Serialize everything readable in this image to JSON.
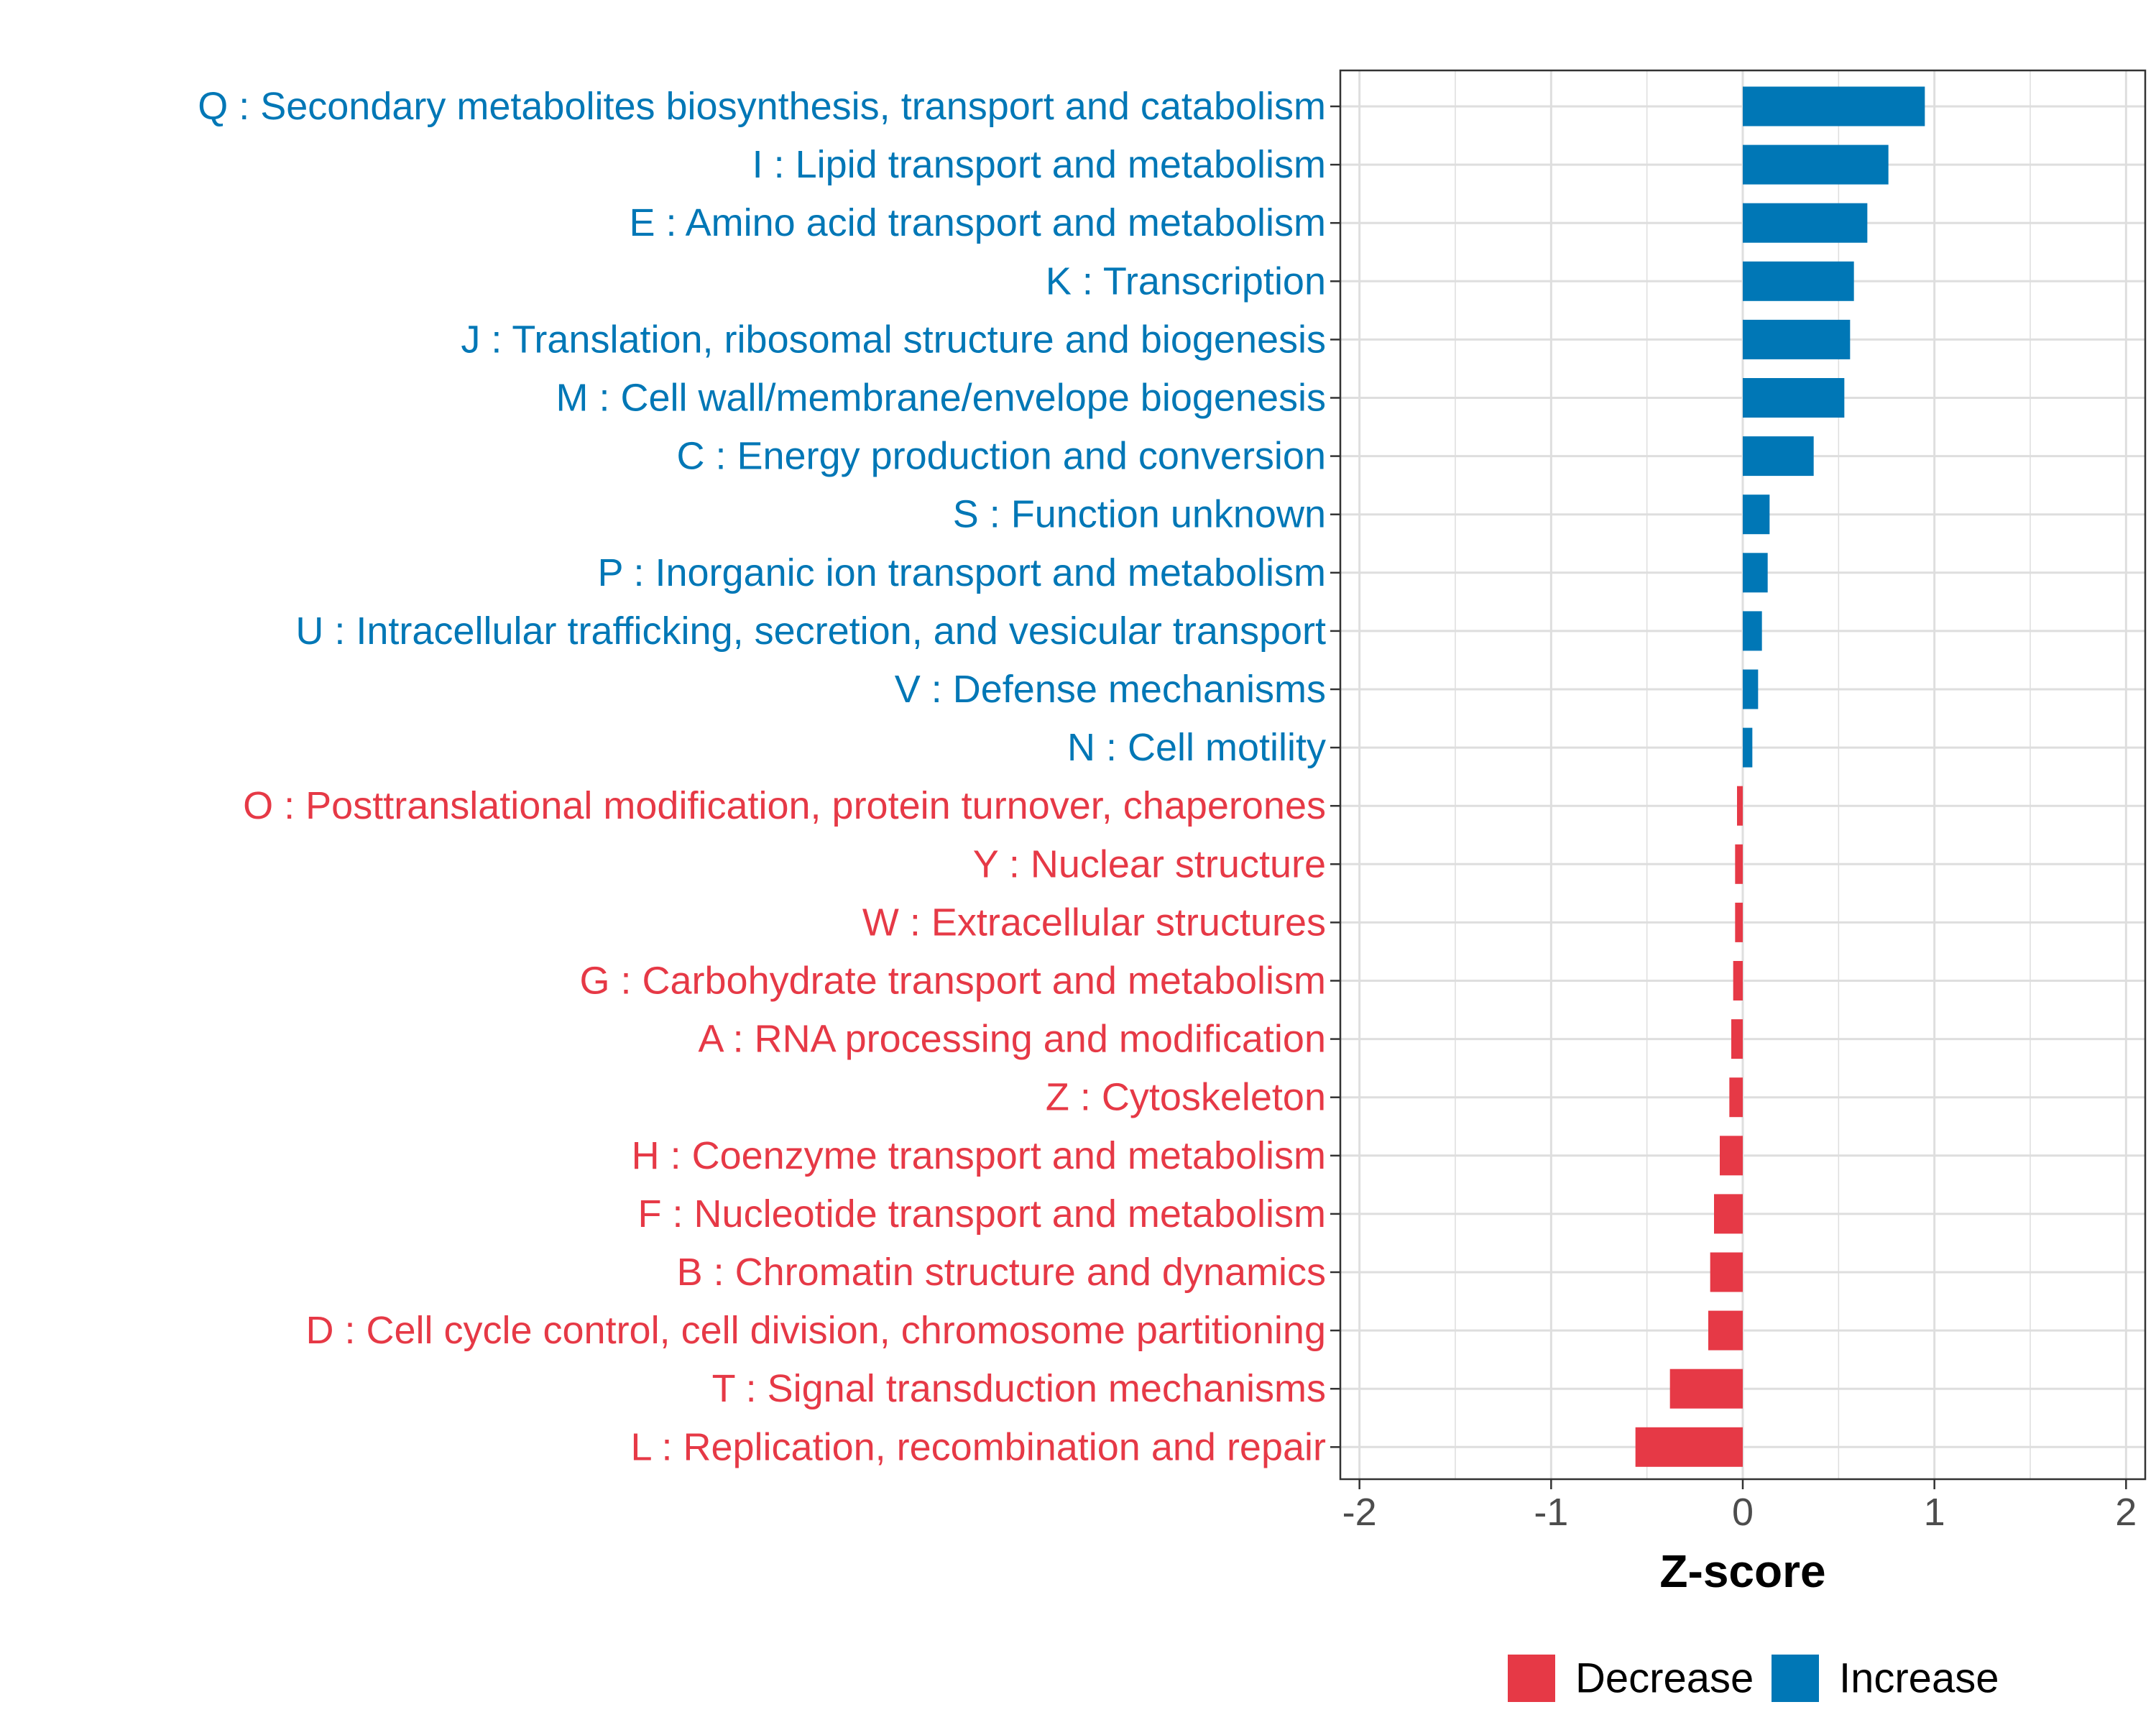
{
  "chart_data": {
    "type": "bar",
    "orientation": "horizontal",
    "xlabel": "Z-score",
    "ylabel": "",
    "xlim": [
      -2.1,
      2.1
    ],
    "x_ticks": [
      -2,
      -1,
      0,
      1,
      2
    ],
    "x_tick_labels": [
      "-2",
      "-1",
      "0",
      "1",
      "2"
    ],
    "grid": true,
    "legend_position": "bottom",
    "colors": {
      "Decrease": "#E63946",
      "Increase": "#0077B6"
    },
    "categories": [
      "Q : Secondary metabolites biosynthesis, transport and catabolism",
      "I : Lipid transport and metabolism",
      "E : Amino acid transport and metabolism",
      "K : Transcription",
      "J : Translation, ribosomal structure and biogenesis",
      "M : Cell wall/membrane/envelope biogenesis",
      "C : Energy production and conversion",
      "S : Function unknown",
      "P : Inorganic ion transport and metabolism",
      "U : Intracellular trafficking, secretion, and vesicular transport",
      "V : Defense mechanisms",
      "N : Cell motility",
      "O : Posttranslational modification, protein turnover, chaperones",
      "Y : Nuclear structure",
      "W : Extracellular structures",
      "G : Carbohydrate transport and metabolism",
      "A : RNA processing and modification",
      "Z : Cytoskeleton",
      "H : Coenzyme transport and metabolism",
      "F : Nucleotide transport and metabolism",
      "B : Chromatin structure and dynamics",
      "D : Cell cycle control, cell division, chromosome partitioning",
      "T : Signal transduction mechanisms",
      "L : Replication, recombination and repair"
    ],
    "values": [
      0.95,
      0.76,
      0.65,
      0.58,
      0.56,
      0.53,
      0.37,
      0.14,
      0.13,
      0.1,
      0.08,
      0.05,
      -0.03,
      -0.04,
      -0.04,
      -0.05,
      -0.06,
      -0.07,
      -0.12,
      -0.15,
      -0.17,
      -0.18,
      -0.38,
      -0.56
    ],
    "groups": [
      "Increase",
      "Increase",
      "Increase",
      "Increase",
      "Increase",
      "Increase",
      "Increase",
      "Increase",
      "Increase",
      "Increase",
      "Increase",
      "Increase",
      "Decrease",
      "Decrease",
      "Decrease",
      "Decrease",
      "Decrease",
      "Decrease",
      "Decrease",
      "Decrease",
      "Decrease",
      "Decrease",
      "Decrease",
      "Decrease"
    ],
    "legend": [
      "Decrease",
      "Increase"
    ]
  }
}
